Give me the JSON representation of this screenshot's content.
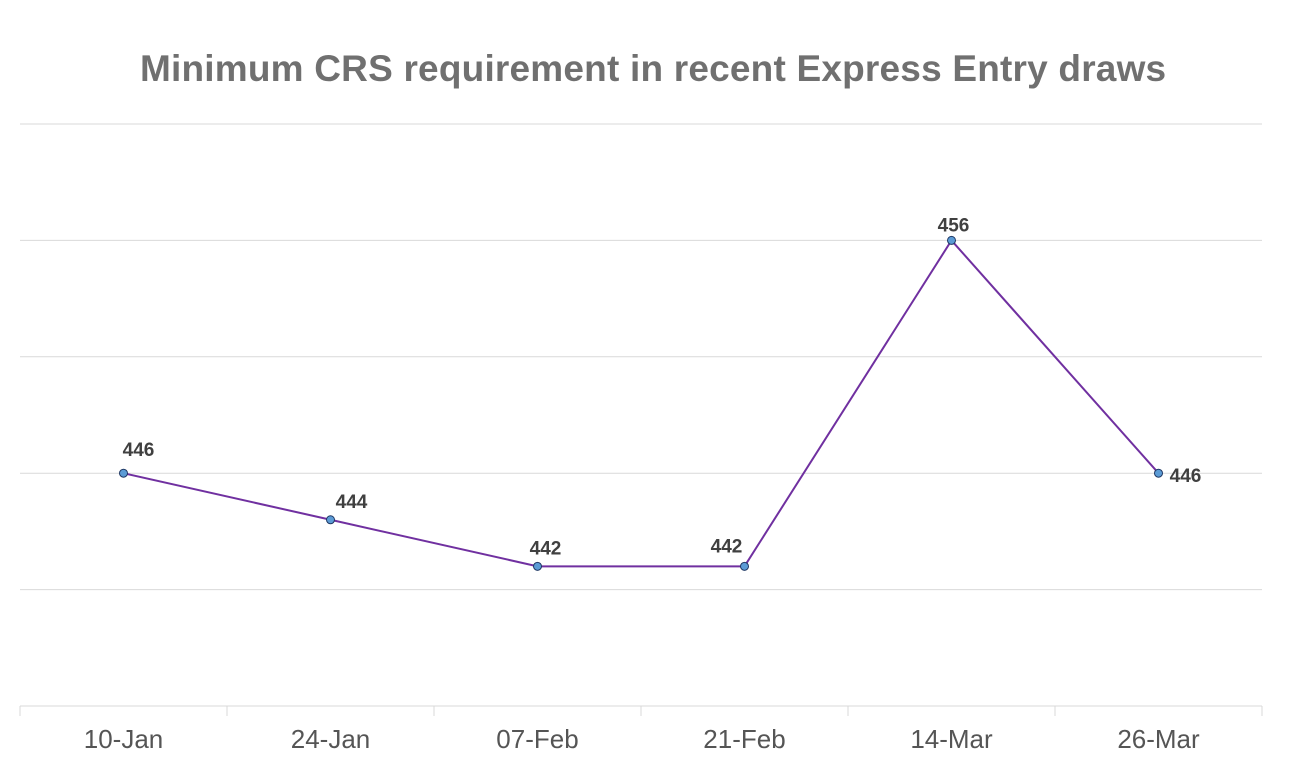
{
  "chart_data": {
    "type": "line",
    "title": "Minimum CRS requirement in recent Express Entry draws",
    "categories": [
      "10-Jan",
      "24-Jan",
      "07-Feb",
      "21-Feb",
      "14-Mar",
      "26-Mar"
    ],
    "series": [
      {
        "values": [
          446,
          444,
          442,
          442,
          456,
          446
        ]
      }
    ],
    "ylim": [
      436,
      461
    ],
    "grid": true,
    "legend": "none",
    "colors": {
      "line": "#7030A0",
      "marker_fill": "#5B9BD5",
      "marker_stroke": "#1F3864",
      "grid": "#D9D9D9",
      "title": "#707070"
    }
  }
}
